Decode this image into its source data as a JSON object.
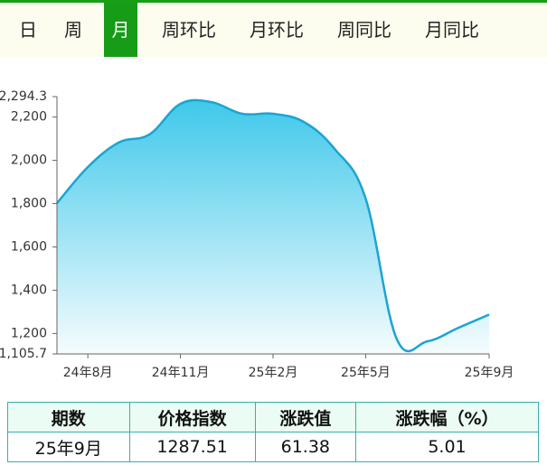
{
  "tabs": {
    "items": [
      "日",
      "周",
      "月",
      "周环比",
      "月环比",
      "周同比",
      "月同比"
    ],
    "selected": 2
  },
  "chart_data": {
    "type": "area",
    "categories": [
      null,
      "24年8月",
      null,
      null,
      "24年11月",
      null,
      null,
      "25年2月",
      null,
      null,
      "25年5月",
      null,
      null,
      null,
      "25年9月"
    ],
    "values": [
      1802,
      1969,
      2082,
      2120,
      2261,
      2269,
      2215,
      2215,
      2177,
      2052,
      1823,
      1177,
      1164,
      1226.13,
      1287.51
    ],
    "color": "#1ba4d2",
    "ylim": [
      1105.7,
      2294.3
    ],
    "yticks": [
      {
        "value": 1105.7,
        "label": "1,105.7"
      },
      {
        "value": 1200,
        "label": "1,200"
      },
      {
        "value": 1400,
        "label": "1,400"
      },
      {
        "value": 1600,
        "label": "1,600"
      },
      {
        "value": 1800,
        "label": "1,800"
      },
      {
        "value": 2000,
        "label": "2,000"
      },
      {
        "value": 2200,
        "label": "2,200"
      },
      {
        "value": 2294.3,
        "label": "2,294.3"
      }
    ]
  },
  "table": {
    "header": [
      "期数",
      "价格指数",
      "涨跌值",
      "涨跌幅（%）"
    ],
    "rows": [
      [
        "25年9月",
        "1287.51",
        "61.38",
        "5.01"
      ]
    ]
  }
}
